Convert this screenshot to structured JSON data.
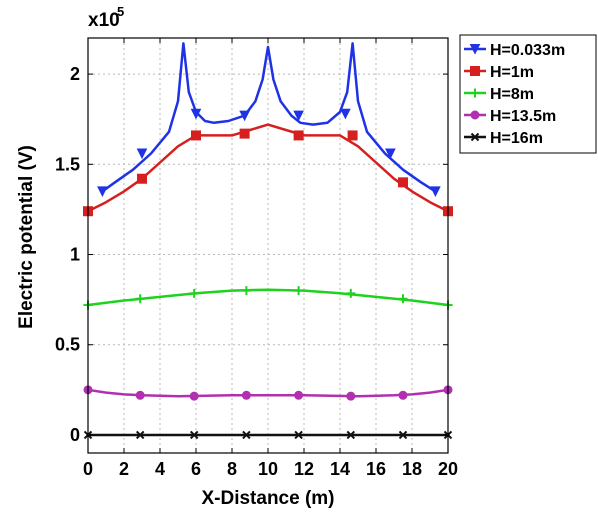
{
  "chart_data": {
    "type": "line",
    "title": "",
    "xlabel": "X-Distance (m)",
    "ylabel": "Electric potential (V)",
    "y_multiplier_label": "x10",
    "y_multiplier_exponent": "5",
    "xlim": [
      0,
      20
    ],
    "ylim": [
      -0.1,
      2.2
    ],
    "grid": true,
    "legend_position": "outside-top-right",
    "x_ticks": [
      0,
      2,
      4,
      6,
      8,
      10,
      12,
      14,
      16,
      18,
      20
    ],
    "x_tick_labels": [
      "0",
      "2",
      "4",
      "6",
      "8",
      "10",
      "12",
      "14",
      "16",
      "18",
      "20"
    ],
    "y_ticks": [
      0,
      0.5,
      1,
      1.5,
      2
    ],
    "y_tick_labels": [
      "0",
      "0.5",
      "1",
      "1.5",
      "2"
    ],
    "series": [
      {
        "name": "H=0.033m",
        "color": "#1f32e6",
        "marker": "triangle-down",
        "x": [
          0.8,
          1.5,
          2.5,
          3.5,
          4.5,
          5.0,
          5.3,
          5.6,
          6.0,
          6.5,
          7.0,
          7.8,
          8.7,
          9.3,
          9.7,
          10.0,
          10.3,
          10.7,
          11.3,
          11.8,
          12.5,
          13.3,
          14.0,
          14.4,
          14.7,
          15.0,
          15.5,
          16.5,
          17.5,
          18.5,
          19.3
        ],
        "y": [
          1.35,
          1.4,
          1.47,
          1.56,
          1.68,
          1.85,
          2.17,
          1.9,
          1.79,
          1.74,
          1.73,
          1.74,
          1.77,
          1.85,
          1.97,
          2.15,
          1.97,
          1.85,
          1.77,
          1.73,
          1.72,
          1.73,
          1.79,
          1.9,
          2.17,
          1.85,
          1.68,
          1.56,
          1.47,
          1.4,
          1.35
        ],
        "marker_x": [
          0.8,
          3.0,
          6.0,
          8.7,
          11.7,
          14.3,
          16.8,
          19.3
        ],
        "marker_y": [
          1.35,
          1.56,
          1.78,
          1.77,
          1.77,
          1.78,
          1.56,
          1.35
        ]
      },
      {
        "name": "H=1m",
        "color": "#d62020",
        "marker": "square",
        "x": [
          0,
          1.0,
          2.0,
          3.0,
          4.0,
          5.0,
          6.0,
          7.0,
          8.0,
          9.0,
          10.0,
          11.0,
          12.0,
          13.0,
          14.0,
          15.0,
          16.0,
          17.0,
          18.0,
          19.0,
          20.0
        ],
        "y": [
          1.24,
          1.29,
          1.35,
          1.42,
          1.51,
          1.6,
          1.66,
          1.66,
          1.66,
          1.69,
          1.72,
          1.69,
          1.66,
          1.66,
          1.66,
          1.6,
          1.51,
          1.42,
          1.35,
          1.29,
          1.24
        ],
        "marker_x": [
          0,
          3.0,
          6.0,
          8.7,
          11.7,
          14.7,
          17.5,
          20.0
        ],
        "marker_y": [
          1.24,
          1.42,
          1.66,
          1.67,
          1.66,
          1.66,
          1.4,
          1.24
        ]
      },
      {
        "name": "H=8m",
        "color": "#1ed21e",
        "marker": "plus",
        "x": [
          0,
          2.0,
          4.0,
          6.0,
          8.0,
          10.0,
          12.0,
          14.0,
          16.0,
          18.0,
          20.0
        ],
        "y": [
          0.72,
          0.745,
          0.765,
          0.785,
          0.8,
          0.805,
          0.8,
          0.785,
          0.765,
          0.745,
          0.72
        ],
        "marker_x": [
          0,
          2.9,
          5.9,
          8.8,
          11.7,
          14.6,
          17.5,
          20.0
        ],
        "marker_y": [
          0.72,
          0.755,
          0.785,
          0.8,
          0.8,
          0.785,
          0.755,
          0.72
        ]
      },
      {
        "name": "H=13.5m",
        "color": "#b030b0",
        "marker": "circle",
        "x": [
          0,
          1.0,
          2.0,
          3.0,
          5.0,
          8.0,
          10.0,
          12.0,
          15.0,
          17.0,
          18.0,
          19.0,
          20.0
        ],
        "y": [
          0.25,
          0.235,
          0.225,
          0.22,
          0.215,
          0.22,
          0.22,
          0.22,
          0.215,
          0.22,
          0.225,
          0.235,
          0.25
        ],
        "marker_x": [
          0,
          2.9,
          5.9,
          8.8,
          11.7,
          14.6,
          17.5,
          20.0
        ],
        "marker_y": [
          0.25,
          0.22,
          0.215,
          0.22,
          0.22,
          0.215,
          0.22,
          0.25
        ]
      },
      {
        "name": "H=16m",
        "color": "#111111",
        "marker": "x",
        "x": [
          0,
          20
        ],
        "y": [
          0,
          0
        ],
        "marker_x": [
          0,
          2.9,
          5.9,
          8.8,
          11.7,
          14.6,
          17.5,
          20.0
        ],
        "marker_y": [
          0,
          0,
          0,
          0,
          0,
          0,
          0,
          0
        ]
      }
    ]
  }
}
